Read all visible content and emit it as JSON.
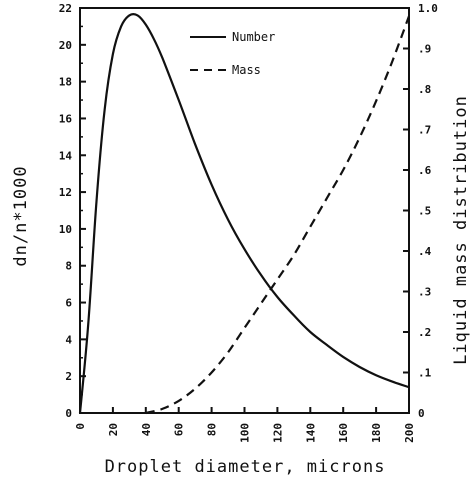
{
  "chart_data": {
    "type": "line",
    "xlabel": "Droplet diameter, microns",
    "ylabel_left": "dn/n*1000",
    "ylabel_right": "Liquid mass distribution",
    "xlim": [
      0,
      200
    ],
    "ylim_left": [
      0,
      22
    ],
    "ylim_right": [
      0,
      1.0
    ],
    "x_ticks": [
      "0",
      "20",
      "40",
      "60",
      "80",
      "100",
      "120",
      "140",
      "160",
      "180",
      "200"
    ],
    "y_ticks_left": [
      "0",
      "2",
      "4",
      "6",
      "8",
      "10",
      "12",
      "14",
      "16",
      "18",
      "20",
      "22"
    ],
    "y_ticks_right": [
      "0",
      ".1",
      ".2",
      ".3",
      ".4",
      ".5",
      ".6",
      ".7",
      ".8",
      ".9",
      "1.0"
    ],
    "grid": false,
    "legend_position": "top-center",
    "series": [
      {
        "name": "Number",
        "axis": "left",
        "style": "solid",
        "x": [
          0,
          5,
          10,
          15,
          20,
          25,
          30,
          35,
          40,
          45,
          50,
          60,
          70,
          80,
          90,
          100,
          110,
          120,
          130,
          140,
          150,
          160,
          170,
          180,
          190,
          200
        ],
        "y": [
          0,
          4.8,
          11.5,
          16.5,
          19.5,
          21.0,
          21.6,
          21.6,
          21.1,
          20.3,
          19.3,
          17.0,
          14.6,
          12.4,
          10.5,
          8.9,
          7.5,
          6.3,
          5.3,
          4.4,
          3.7,
          3.05,
          2.5,
          2.05,
          1.7,
          1.4
        ]
      },
      {
        "name": "Mass",
        "axis": "right",
        "style": "dashed",
        "x": [
          40,
          50,
          60,
          70,
          80,
          90,
          100,
          110,
          120,
          130,
          140,
          150,
          160,
          170,
          180,
          190,
          200
        ],
        "y": [
          0,
          0.01,
          0.03,
          0.06,
          0.1,
          0.15,
          0.21,
          0.27,
          0.33,
          0.39,
          0.46,
          0.53,
          0.6,
          0.68,
          0.77,
          0.87,
          0.98
        ]
      }
    ]
  }
}
